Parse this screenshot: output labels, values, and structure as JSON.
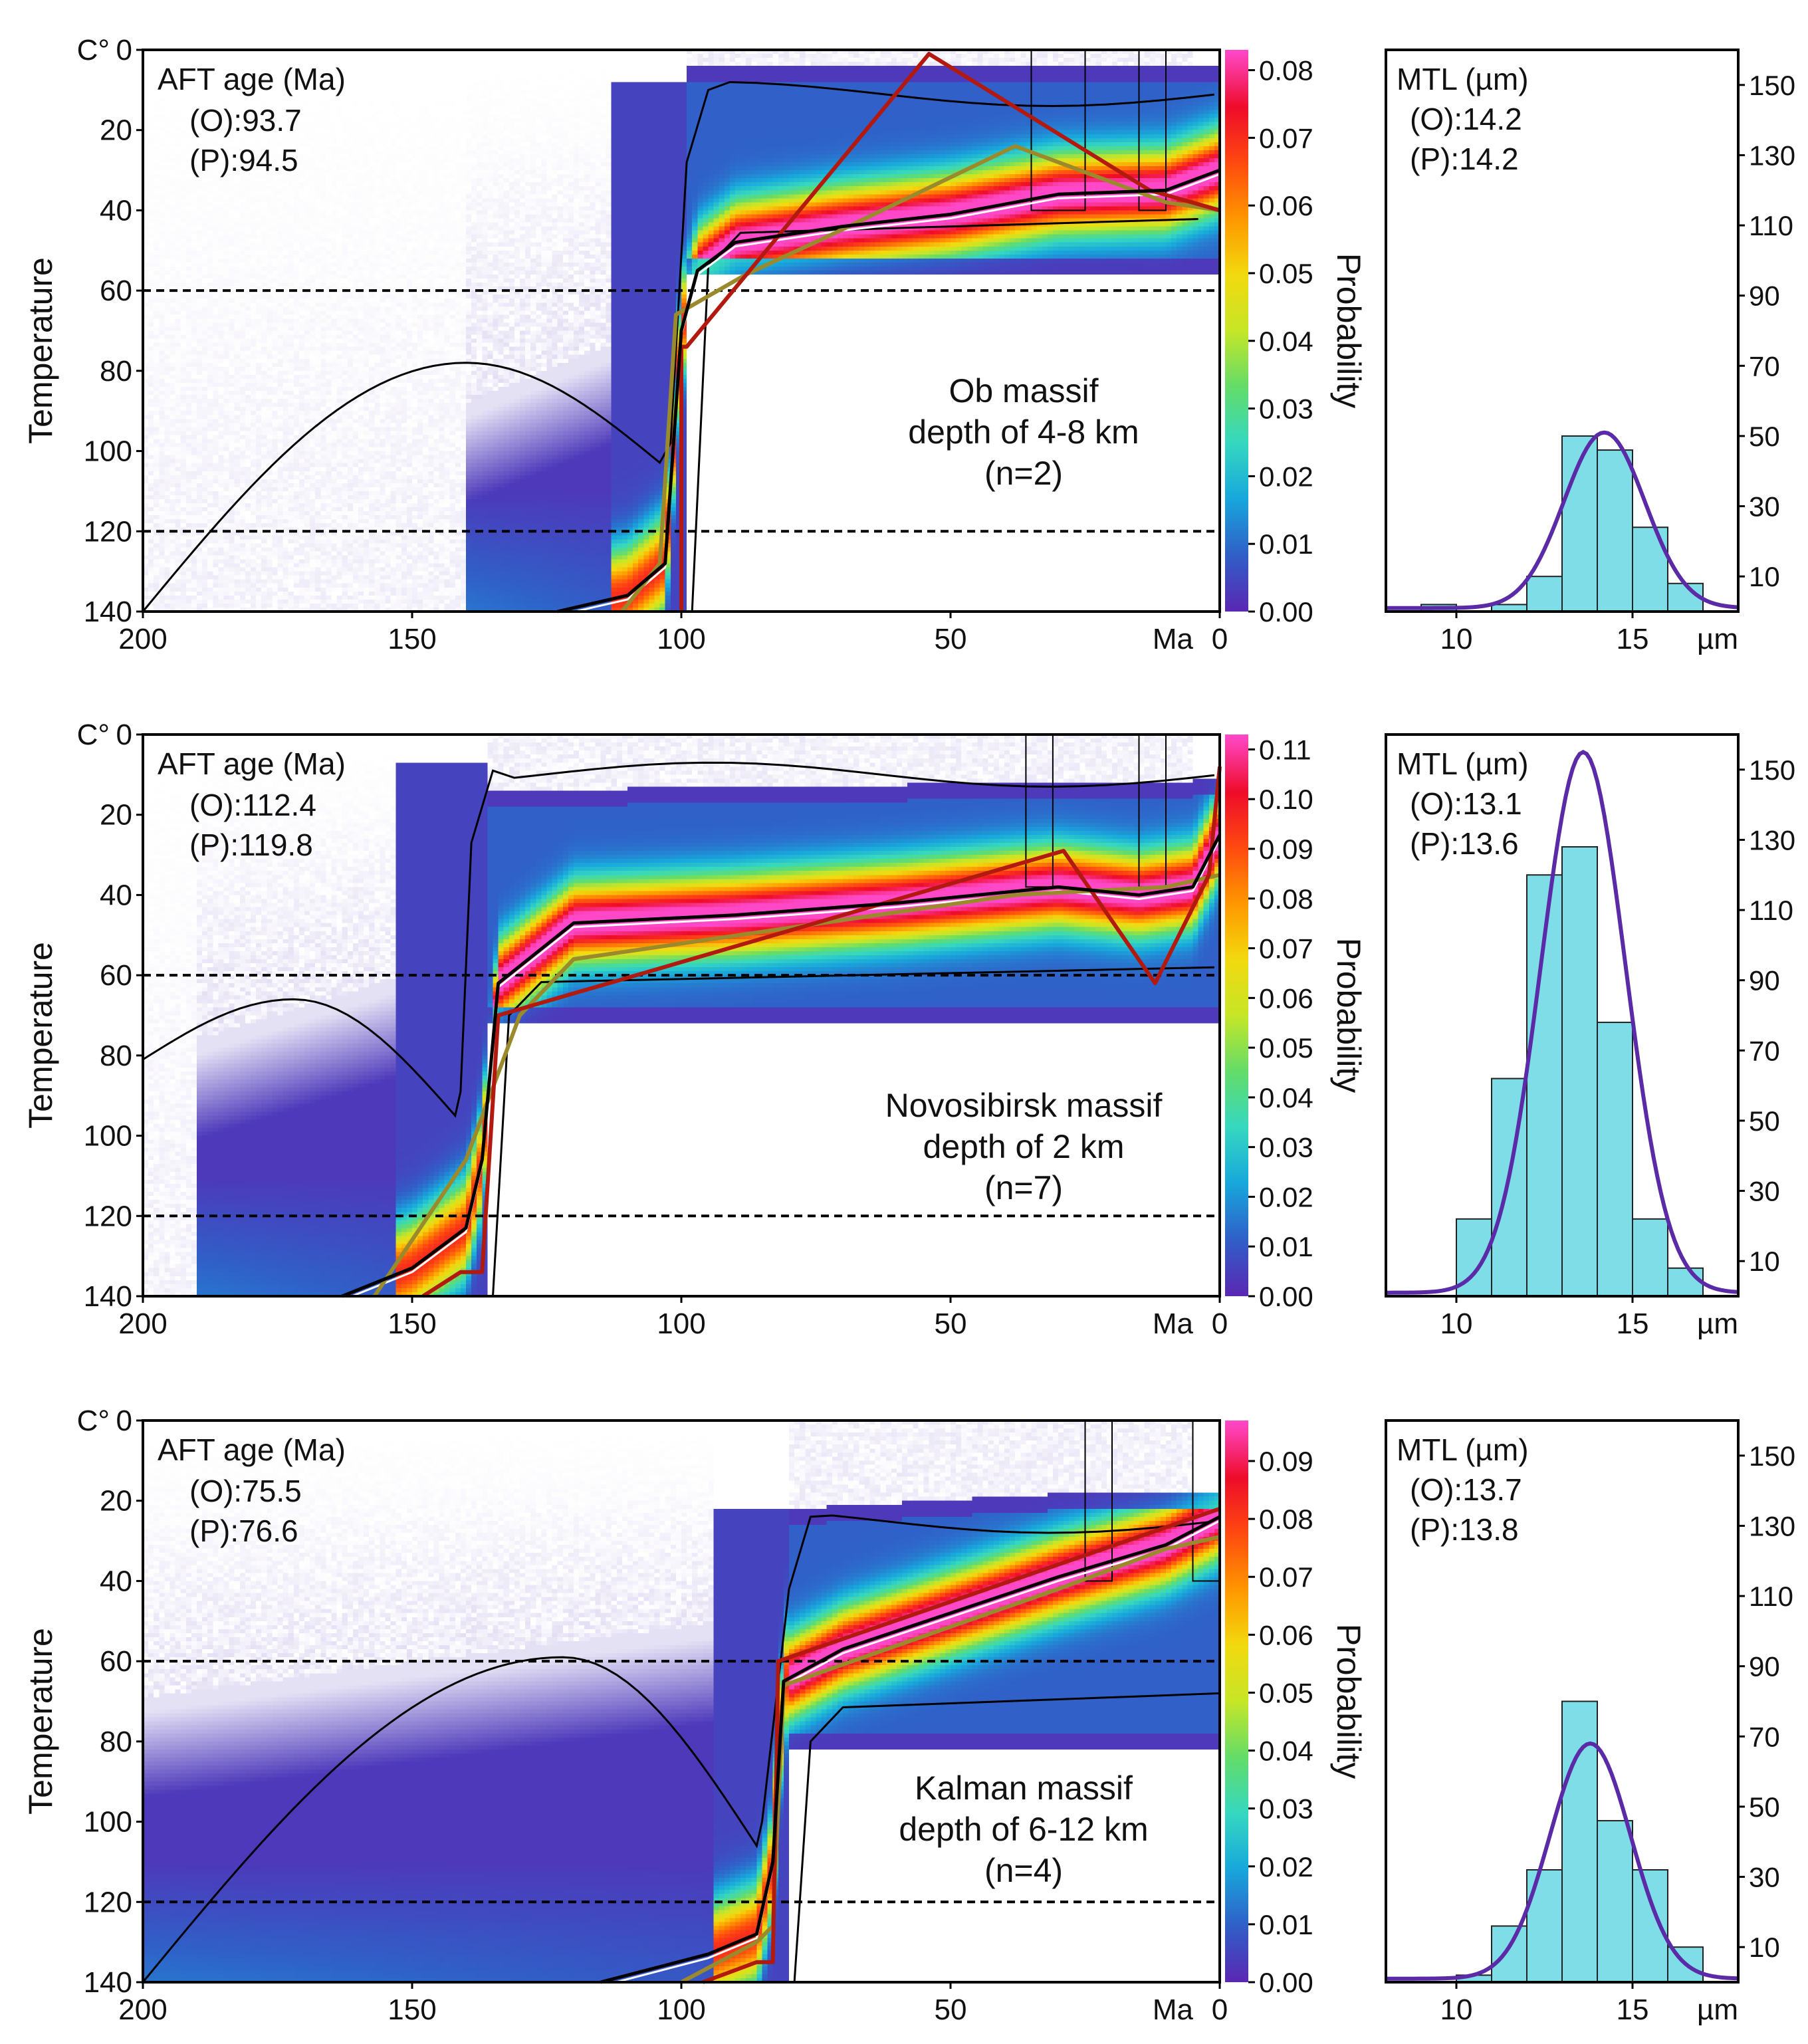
{
  "chart_data": [
    {
      "type": "heatmap",
      "kind": "thermal-history",
      "site": "Ob massif",
      "label_lines": [
        "Ob massif",
        "depth of 4-8 km",
        "(n=2)"
      ],
      "aft": {
        "title": "AFT age (Ma)",
        "observed": "(O):93.7",
        "predicted": "(P):94.5"
      },
      "ylabel": "Temperature",
      "yunit": "C°",
      "xunit": "Ma",
      "xlim": [
        200,
        0
      ],
      "ylim": [
        0,
        140
      ],
      "xticks": [
        200,
        150,
        100,
        50,
        0
      ],
      "yticks": [
        0,
        20,
        40,
        60,
        80,
        100,
        120,
        140
      ],
      "pra_lines": [
        60,
        120
      ],
      "colorbar": {
        "title": "Probability",
        "ticks": [
          "0.00",
          "0.01",
          "0.02",
          "0.03",
          "0.04",
          "0.05",
          "0.06",
          "0.07",
          "0.08"
        ],
        "max": 0.083
      },
      "cloud_start": 140,
      "envelope_outer_start": 125,
      "rise_x": [
        99,
        103
      ],
      "plateau_y": 36,
      "plateau_end_y": 29,
      "plateau_bottom": 46,
      "rise_top": 8,
      "constraint_boxes": [
        [
          35,
          10,
          40
        ],
        [
          15,
          5,
          40
        ]
      ],
      "hump": {
        "apex_x": 140,
        "apex_y": 78,
        "dip_x": 103,
        "dip_y": 104,
        "left_y": 140
      },
      "best_fit": {
        "x": [
          123,
          110,
          103,
          100,
          97,
          90,
          70,
          50,
          30,
          10,
          0
        ],
        "y": [
          140,
          136,
          128,
          70,
          55,
          48,
          44,
          41,
          36,
          35,
          30
        ]
      },
      "red_path": {
        "x": [
          100,
          100,
          99,
          54,
          13,
          0
        ],
        "y": [
          140,
          74,
          74,
          1,
          35,
          40
        ]
      },
      "olive_path": {
        "x": [
          111,
          104,
          101,
          88,
          72,
          38,
          10,
          0
        ],
        "y": [
          140,
          128,
          66,
          56,
          46,
          24,
          38,
          40
        ]
      },
      "histogram": {
        "title": "MTL (µm)",
        "observed": "(O):14.2",
        "predicted": "(P):14.2",
        "xunit": "µm",
        "xlim": [
          8,
          18
        ],
        "ylim": [
          0,
          160
        ],
        "xticks": [
          10,
          15
        ],
        "yticks": [
          10,
          30,
          50,
          70,
          90,
          110,
          130,
          150
        ],
        "bins": [
          [
            9,
            10,
            2
          ],
          [
            11,
            12,
            2
          ],
          [
            12,
            13,
            10
          ],
          [
            13,
            14,
            50
          ],
          [
            14,
            15,
            46
          ],
          [
            15,
            16,
            24
          ],
          [
            16,
            17,
            8
          ]
        ],
        "curve": {
          "mu": 14.2,
          "sigma": 1.15,
          "peak": 50
        }
      }
    },
    {
      "type": "heatmap",
      "kind": "thermal-history",
      "site": "Novosibirsk massif",
      "label_lines": [
        "Novosibirsk massif",
        "depth of 2 km",
        "(n=7)"
      ],
      "aft": {
        "title": "AFT age (Ma)",
        "observed": "(O):112.4",
        "predicted": "(P):119.8"
      },
      "ylabel": "Temperature",
      "yunit": "C°",
      "xunit": "Ma",
      "xlim": [
        200,
        0
      ],
      "ylim": [
        0,
        140
      ],
      "xticks": [
        200,
        150,
        100,
        50,
        0
      ],
      "yticks": [
        0,
        20,
        40,
        60,
        80,
        100,
        120,
        140
      ],
      "pra_lines": [
        60,
        120
      ],
      "colorbar": {
        "title": "Probability",
        "ticks": [
          "0.00",
          "0.01",
          "0.02",
          "0.03",
          "0.04",
          "0.05",
          "0.06",
          "0.07",
          "0.08",
          "0.09",
          "0.10",
          "0.11"
        ],
        "max": 0.113
      },
      "cloud_start": 190,
      "envelope_outer_start": 163,
      "rise_x": [
        136,
        143
      ],
      "plateau_y": 48,
      "plateau_end_y": 35,
      "plateau_bottom": 62,
      "rise_top": 7,
      "constraint_boxes": [
        [
          36,
          5,
          38
        ],
        [
          15,
          5,
          38
        ]
      ],
      "hump": {
        "apex_x": 172,
        "apex_y": 66,
        "dip_x": 142,
        "dip_y": 95,
        "left_y": 81
      },
      "best_fit": {
        "x": [
          163,
          150,
          140,
          137,
          134,
          120,
          90,
          60,
          30,
          15,
          5,
          0
        ],
        "y": [
          140,
          133,
          123,
          106,
          62,
          47,
          45,
          42,
          38,
          40,
          38,
          25
        ]
      },
      "red_path": {
        "x": [
          148,
          141,
          137,
          134,
          29,
          12,
          2,
          0
        ],
        "y": [
          140,
          134,
          134,
          70,
          29,
          62,
          35,
          8
        ]
      },
      "olive_path": {
        "x": [
          157,
          140,
          130,
          120,
          38,
          10,
          0
        ],
        "y": [
          140,
          106,
          70,
          56,
          40,
          38,
          35
        ]
      },
      "histogram": {
        "title": "MTL (µm)",
        "observed": "(O):13.1",
        "predicted": "(P):13.6",
        "xunit": "µm",
        "xlim": [
          8,
          18
        ],
        "ylim": [
          0,
          160
        ],
        "xticks": [
          10,
          15
        ],
        "yticks": [
          10,
          30,
          50,
          70,
          90,
          110,
          130,
          150
        ],
        "bins": [
          [
            10,
            11,
            22
          ],
          [
            11,
            12,
            62
          ],
          [
            12,
            13,
            120
          ],
          [
            13,
            14,
            128
          ],
          [
            14,
            15,
            78
          ],
          [
            15,
            16,
            22
          ],
          [
            16,
            17,
            8
          ]
        ],
        "curve": {
          "mu": 13.6,
          "sigma": 1.2,
          "peak": 154
        }
      }
    },
    {
      "type": "heatmap",
      "kind": "thermal-history",
      "site": "Kalman massif",
      "label_lines": [
        "Kalman massif",
        "depth of 6-12 km",
        "(n=4)"
      ],
      "aft": {
        "title": "AFT age (Ma)",
        "observed": "(O):75.5",
        "predicted": "(P):76.6"
      },
      "ylabel": "Temperature",
      "yunit": "C°",
      "xunit": "Ma",
      "xlim": [
        200,
        0
      ],
      "ylim": [
        0,
        140
      ],
      "xticks": [
        200,
        150,
        100,
        50,
        0
      ],
      "yticks": [
        0,
        20,
        40,
        60,
        80,
        100,
        120,
        140
      ],
      "pra_lines": [
        60,
        120
      ],
      "colorbar": {
        "title": "Probability",
        "ticks": [
          "0.00",
          "0.01",
          "0.02",
          "0.03",
          "0.04",
          "0.05",
          "0.06",
          "0.07",
          "0.08",
          "0.09"
        ],
        "max": 0.097
      },
      "cloud_start": 200,
      "envelope_outer_start": 115,
      "rise_x": [
        80,
        84
      ],
      "plateau_y": 56,
      "plateau_end_y": 27,
      "plateau_bottom": 72,
      "rise_top": 22,
      "constraint_boxes": [
        [
          25,
          5,
          40
        ],
        [
          5,
          5,
          40
        ]
      ],
      "hump": {
        "apex_x": 122,
        "apex_y": 59,
        "dip_x": 86,
        "dip_y": 106,
        "left_y": 140
      },
      "best_fit": {
        "x": [
          115,
          95,
          86,
          83,
          81,
          70,
          50,
          30,
          10,
          0
        ],
        "y": [
          140,
          133,
          128,
          110,
          65,
          57,
          48,
          39,
          31,
          24
        ]
      },
      "red_path": {
        "x": [
          96,
          86,
          83,
          82,
          0
        ],
        "y": [
          140,
          135,
          135,
          60,
          22
        ]
      },
      "olive_path": {
        "x": [
          100,
          86,
          83,
          81,
          30,
          10,
          0
        ],
        "y": [
          140,
          130,
          126,
          66,
          42,
          32,
          29
        ]
      },
      "histogram": {
        "title": "MTL (µm)",
        "observed": "(O):13.7",
        "predicted": "(P):13.8",
        "xunit": "µm",
        "xlim": [
          8,
          18
        ],
        "ylim": [
          0,
          160
        ],
        "xticks": [
          10,
          15
        ],
        "yticks": [
          10,
          30,
          50,
          70,
          90,
          110,
          130,
          150
        ],
        "bins": [
          [
            10,
            11,
            2
          ],
          [
            11,
            12,
            16
          ],
          [
            12,
            13,
            32
          ],
          [
            13,
            14,
            80
          ],
          [
            14,
            15,
            46
          ],
          [
            15,
            16,
            32
          ],
          [
            16,
            17,
            10
          ]
        ],
        "curve": {
          "mu": 13.8,
          "sigma": 1.15,
          "peak": 67
        }
      }
    }
  ],
  "colors": {
    "best_fit": "#000000",
    "red_path": "#b21a10",
    "olive_path": "#9a8a2c",
    "mean_path": "#ffffff",
    "bar_fill": "#7fdde8",
    "curve": "#5b2aa6",
    "cmap": [
      "#5a28b4",
      "#3060c8",
      "#18a8dc",
      "#36d8c0",
      "#64dc6a",
      "#c6e628",
      "#f2da10",
      "#ff9800",
      "#ff4a10",
      "#ee0c2a",
      "#ff48c8"
    ]
  }
}
